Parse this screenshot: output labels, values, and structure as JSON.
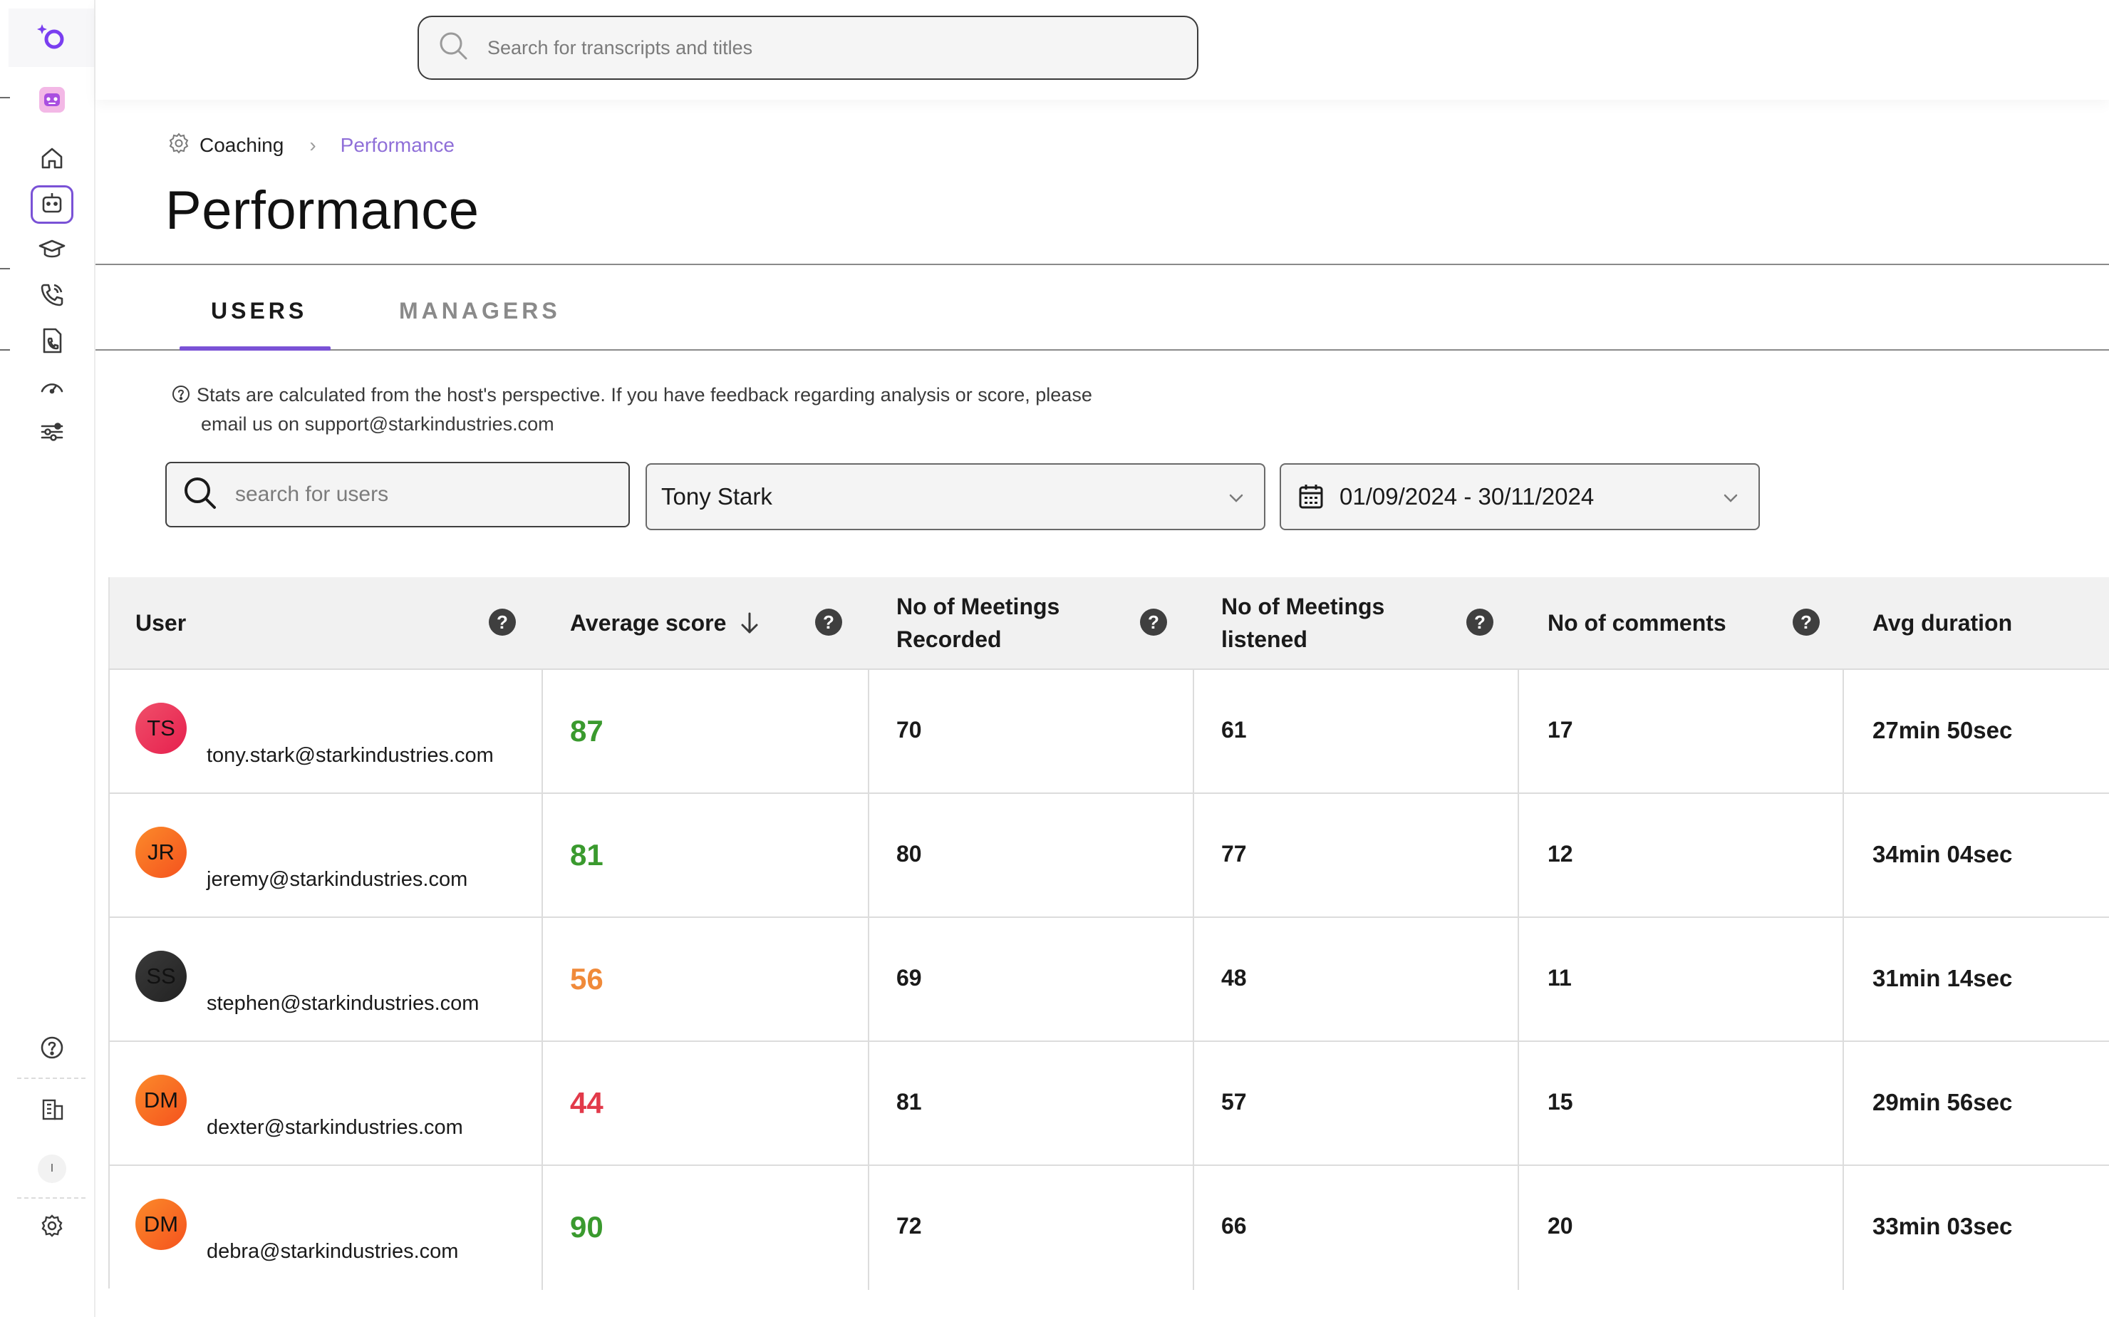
{
  "search": {
    "placeholder": "Search for transcripts and titles"
  },
  "breadcrumb": {
    "parent": "Coaching",
    "current": "Performance"
  },
  "page_title": "Performance",
  "tabs": [
    {
      "label": "USERS",
      "active": true
    },
    {
      "label": "MANAGERS",
      "active": false
    }
  ],
  "info_note": {
    "line1": "Stats are calculated from the host's perspective. If you have feedback regarding analysis or score, please",
    "line2": "email us on support@starkindustries.com"
  },
  "filters": {
    "user_search_placeholder": "search for users",
    "selected_user": "Tony Stark",
    "date_range": "01/09/2024 - 30/11/2024"
  },
  "table": {
    "columns": [
      {
        "label": "User"
      },
      {
        "label": "Average score"
      },
      {
        "label_line1": "No of Meetings",
        "label_line2": "Recorded"
      },
      {
        "label_line1": "No of Meetings",
        "label_line2": "listened"
      },
      {
        "label": "No of comments"
      },
      {
        "label": "Avg duration"
      }
    ],
    "help_glyph": "?",
    "rows": [
      {
        "initials": "TS",
        "email": "tony.stark@starkindustries.com",
        "score": "87",
        "recorded": "70",
        "listened": "61",
        "comments": "17",
        "duration": "27min 50sec",
        "score_color": "#3a9a2e",
        "avatar_colors": [
          "#f04f6a",
          "#e6204e"
        ]
      },
      {
        "initials": "JR",
        "email": "jeremy@starkindustries.com",
        "score": "81",
        "recorded": "80",
        "listened": "77",
        "comments": "12",
        "duration": "34min 04sec",
        "score_color": "#3a9a2e",
        "avatar_colors": [
          "#fb8a2a",
          "#f5521e"
        ]
      },
      {
        "initials": "SS",
        "email": "stephen@starkindustries.com",
        "score": "56",
        "recorded": "69",
        "listened": "48",
        "comments": "11",
        "duration": "31min 14sec",
        "score_color": "#f08a3a",
        "avatar_colors": [
          "#3a3a3a",
          "#222222"
        ]
      },
      {
        "initials": "DM",
        "email": "dexter@starkindustries.com",
        "score": "44",
        "recorded": "81",
        "listened": "57",
        "comments": "15",
        "duration": "29min 56sec",
        "score_color": "#e23a4a",
        "avatar_colors": [
          "#fb8a2a",
          "#f5521e"
        ]
      },
      {
        "initials": "DM",
        "email": "debra@starkindustries.com",
        "score": "90",
        "recorded": "72",
        "listened": "66",
        "comments": "20",
        "duration": "33min 03sec",
        "score_color": "#3a9a2e",
        "avatar_colors": [
          "#fb8a2a",
          "#f5521e"
        ]
      }
    ]
  },
  "sidebar": {
    "brand_icon": "ai-logo-icon",
    "items": [
      {
        "icon": "bot-avatar-icon"
      },
      {
        "icon": "home-icon"
      },
      {
        "icon": "robot-icon",
        "active": true
      },
      {
        "icon": "graduation-cap-icon"
      },
      {
        "icon": "phone-call-icon"
      },
      {
        "icon": "call-document-icon"
      },
      {
        "icon": "speedometer-icon"
      },
      {
        "icon": "sliders-icon"
      }
    ],
    "bottom_items": [
      {
        "icon": "help-icon"
      },
      {
        "icon": "building-icon"
      },
      {
        "icon": "user-initial-icon",
        "label": "I"
      },
      {
        "icon": "settings-gear-icon"
      }
    ]
  },
  "colors": {
    "accent": "#7a52d6",
    "breadcrumb_current": "#8f6fd8"
  }
}
